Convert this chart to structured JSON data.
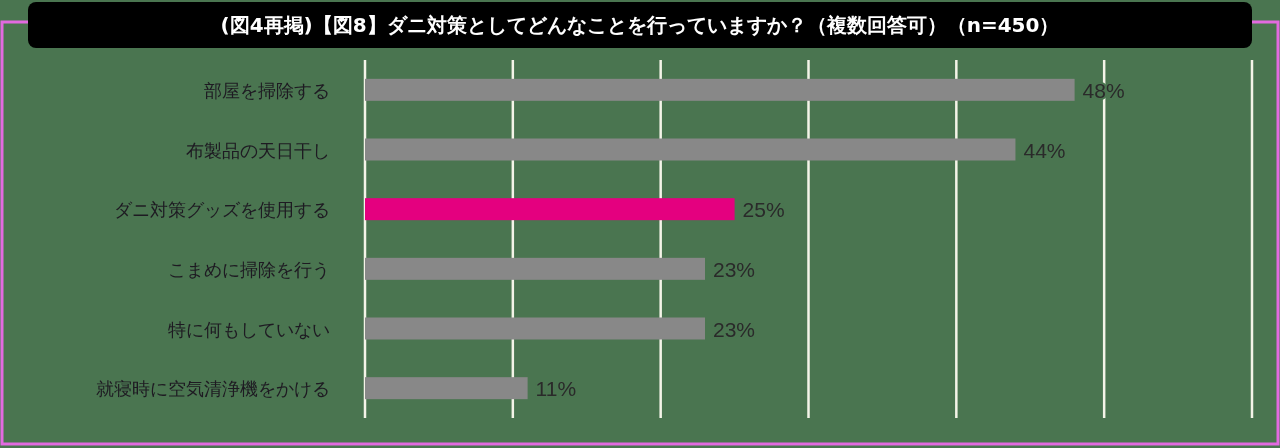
{
  "chart_data": {
    "type": "bar",
    "orientation": "horizontal",
    "title": "(図4再掲)【図8】ダニ対策としてどんなことを行っていますか？（複数回答可）（n=450）",
    "categories": [
      "部屋を掃除する",
      "布製品の天日干し",
      "ダニ対策グッズを使用する",
      "こまめに掃除を行う",
      "特に何もしていない",
      "就寝時に空気清浄機をかける"
    ],
    "values": [
      48,
      44,
      25,
      23,
      23,
      11
    ],
    "value_labels": [
      "48%",
      "44%",
      "25%",
      "23%",
      "23%",
      "11%"
    ],
    "colors": [
      "#888888",
      "#888888",
      "#e4007f",
      "#888888",
      "#888888",
      "#888888"
    ],
    "xlim": [
      0,
      60
    ],
    "xticks": [
      {
        "value": 0,
        "label": null
      },
      {
        "value": 10,
        "label": null
      },
      {
        "value": 20,
        "label": null
      },
      {
        "value": 30,
        "label": null
      },
      {
        "value": 40,
        "label": null
      },
      {
        "value": 50,
        "label": null
      },
      {
        "value": 60,
        "label": null
      }
    ],
    "grid": "x",
    "tick_labels": "y"
  }
}
